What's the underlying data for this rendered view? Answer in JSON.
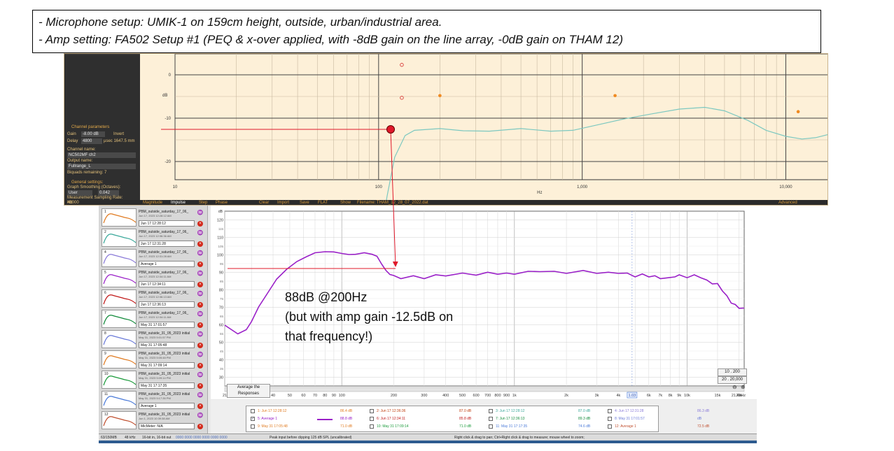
{
  "note": {
    "line1": "- Microphone setup: UMIK-1 on 159cm height, outside, urban/industrial area.",
    "line2": "- Amp setting: FA502 Setup  #1 (PEQ & x-over applied, with -8dB  gain on the line array, -0dB gain  on THAM 12)"
  },
  "amp": {
    "channel_params_title": "Channel parameters",
    "gain_label": "Gain",
    "gain_value": "-8.00",
    "gain_unit": "dB",
    "invert_label": "Invert",
    "delay_label": "Delay",
    "delay_value": "4800",
    "delay_unit": "µsec 1647.5 mm",
    "channel_name_label": "Channel name:",
    "channel_name": "NC502MF ch2",
    "output_name_label": "Output name:",
    "output_name": "Fullrange_L",
    "biquads": "Biquads remaining: 7",
    "general_title": "General settings:",
    "smoothing_label": "Graph Smoothing (Octaves):",
    "smoothing_mode": "User",
    "smoothing_value": "0.042",
    "sampling_label": "Measurement Sampling Rate:",
    "sampling_value": "48000",
    "sampling_unit": "Hz",
    "y_axis_label": "dB",
    "x_axis_label": "Hz",
    "y_ticks": [
      "0",
      "-10",
      "-20"
    ],
    "x_ticks": [
      "10",
      "100",
      "1,000",
      "10,000"
    ],
    "bottom_tabs": [
      "Magnitude",
      "Impulse",
      "Step",
      "Phase"
    ],
    "bottom_buttons": [
      "Clear",
      "Import",
      "Save",
      "FLAT",
      "Show"
    ],
    "filename": "Filename: THAM_12_28_07_2022.dat",
    "advanced": "Advanced",
    "curve_color": "#7cc8c0",
    "marker_color": "#e0182a"
  },
  "rew": {
    "measurements": [
      {
        "num": "1",
        "name": "PBM_outside_saturday_17_06_",
        "sub": "Jun 17, 2023 12:28:12 AM",
        "field": "Jun 17 12:28:12",
        "color": "#e07a20"
      },
      {
        "num": "2",
        "name": "PBM_outside_saturday_17_06_",
        "sub": "Jun 17, 2023 12:36:36 AM",
        "field": "Jun 17 12:31:28",
        "color": "#3aa89a"
      },
      {
        "num": "4",
        "name": "PBM_outside_saturday_17_06_",
        "sub": "Jun 17, 2023 12:31:28 AM",
        "field": "Average 1",
        "color": "#8a7ad8"
      },
      {
        "num": "5",
        "name": "PBM_outside_saturday_17_06_",
        "sub": "Jun 17, 2023 12:34:11 AM",
        "field": "Jun 17 12:34:11",
        "color": "#9a20c8"
      },
      {
        "num": "6",
        "name": "PBM_outside_saturday_17_06_",
        "sub": "Jun 17, 2023 12:36:13 AM",
        "field": "Jun 17 12:36:13",
        "color": "#c01818"
      },
      {
        "num": "7",
        "name": "PBM_outside_saturday_17_06_",
        "sub": "Jun 17, 2023 12:34:11 AM",
        "field": "May 31 17:01:57",
        "color": "#118a3a"
      },
      {
        "num": "8",
        "name": "PBM_outside_31_05_2023 initial",
        "sub": "May 31, 2023 5:01:57 PM",
        "field": "May 31 17:05:48",
        "color": "#6a7ad8"
      },
      {
        "num": "9",
        "name": "PBM_outside_31_05_2023 initial",
        "sub": "May 31, 2023 5:05:48 PM",
        "field": "May 31 17:09:14",
        "color": "#e07a20"
      },
      {
        "num": "10",
        "name": "PBM_outside_31_05_2023 initial",
        "sub": "May 31, 2023 5:09:14 PM",
        "field": "May 31 17:17:35",
        "color": "#1a9a3a"
      },
      {
        "num": "11",
        "name": "PBM_outside_31_05_2023 initial",
        "sub": "May 31, 2023 5:17:35 PM",
        "field": "Average 1",
        "color": "#4a7ad8"
      },
      {
        "num": "12",
        "name": "PBM_outside_31_05_2023 initial",
        "sub": "Jun 1, 2023 10:39:38 AM",
        "field": "MicMeter: N/A",
        "color": "#c05030"
      }
    ],
    "y_ticks": [
      "120",
      "110",
      "100",
      "90",
      "80",
      "70",
      "60",
      "50",
      "40",
      "30"
    ],
    "y_unit": "dB",
    "x_ticks": [
      "21",
      "30",
      "40",
      "50",
      "60",
      "70",
      "80",
      "90",
      "100",
      "200",
      "300",
      "400",
      "500",
      "600",
      "700",
      "800",
      "900",
      "1k",
      "2k",
      "3k",
      "4k",
      "5k",
      "6k",
      "7k",
      "8k",
      "9k",
      "10k",
      "15k",
      "20k"
    ],
    "x_end_label": "21.4kHz",
    "cursor_label": "1.03",
    "average_button": "Average the Responses",
    "range_btn1": "10 . 200",
    "range_btn2": "20 . 20,000",
    "legend": [
      {
        "label": "1: Jun 17 12:28:12",
        "value": "86.4 dB",
        "color": "#e07a20",
        "checked": false
      },
      {
        "label": "2: Jun 17 12:36:36",
        "value": "87.0 dB",
        "color": "#c04010",
        "checked": false
      },
      {
        "label": "3: Jun 17 12:28:12",
        "value": "87.0 dB",
        "color": "#3aa89a",
        "checked": false
      },
      {
        "label": "4: Jun 17 12:31:28",
        "value": "86.3 dB",
        "color": "#8a7ad8",
        "checked": false
      },
      {
        "label": "5: Average 1",
        "value": "88.8 dB",
        "color": "#9a20c8",
        "checked": true
      },
      {
        "label": "6: Jun 17 12:34:11",
        "value": "85.8 dB",
        "color": "#c01818",
        "checked": false
      },
      {
        "label": "7: Jun 17 12:36:13",
        "value": "89.3 dB",
        "color": "#118a3a",
        "checked": false
      },
      {
        "label": "8: May 31 17:01:57",
        "value": "dB",
        "color": "#6a7ad8",
        "checked": false
      },
      {
        "label": "9: May 31 17:05:48",
        "value": "71.0 dB",
        "color": "#e07a20",
        "checked": false
      },
      {
        "label": "10: May 31 17:09:14",
        "value": "71.0 dB",
        "color": "#1a9a3a",
        "checked": false
      },
      {
        "label": "11: May 31 17:17:35",
        "value": "74.6 dB",
        "color": "#4a7ad8",
        "checked": false
      },
      {
        "label": "12: Average 1",
        "value": "72.5 dB",
        "color": "#c05030",
        "checked": false
      }
    ],
    "status": {
      "memory": "63/150MB",
      "rate": "48 kHz",
      "bits": "16-bit in, 16-bit out",
      "levels": "0000 0000  0000 0000  0000 0000",
      "peak": "Peak input before clipping 125 dB SPL (uncalibrated)",
      "hint": "Right click & drag to pan; Ctrl+Right click & drag to measure; mouse wheel to zoom;"
    },
    "curve_color": "#9a20c8"
  },
  "annotation": {
    "line1": "88dB @200Hz",
    "line2": "(but with amp gain  -12.5dB on",
    "line3": "that frequency!)"
  }
}
